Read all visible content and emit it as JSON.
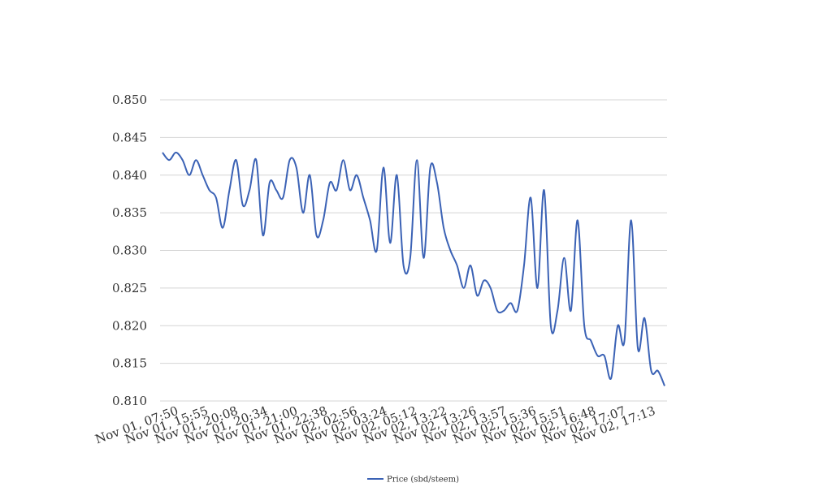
{
  "chart_data": {
    "type": "line",
    "title": "",
    "xlabel": "",
    "ylabel": "",
    "ylim": [
      0.81,
      0.85
    ],
    "yticks": [
      "0.850",
      "0.845",
      "0.840",
      "0.835",
      "0.830",
      "0.825",
      "0.820",
      "0.815",
      "0.810"
    ],
    "grid": true,
    "legend_position": "bottom",
    "category_labels": [
      "Nov 01, 07:50",
      "Nov 01, 15:55",
      "Nov 01, 20:08",
      "Nov 01, 20:34",
      "Nov 01, 21:00",
      "Nov 01, 22:38",
      "Nov 02, 02:56",
      "Nov 02, 03:24",
      "Nov 02, 05:12",
      "Nov 02, 13:22",
      "Nov 02, 13:26",
      "Nov 02, 13:57",
      "Nov 02, 15:36",
      "Nov 02, 15:51",
      "Nov 02, 16:48",
      "Nov 02, 17:07",
      "Nov 02, 17:13"
    ],
    "series": [
      {
        "name": "Price (sbd/steem)",
        "color": "#3b62b5",
        "values": [
          0.843,
          0.842,
          0.843,
          0.842,
          0.84,
          0.842,
          0.84,
          0.838,
          0.837,
          0.833,
          0.838,
          0.842,
          0.836,
          0.838,
          0.842,
          0.832,
          0.839,
          0.838,
          0.837,
          0.842,
          0.841,
          0.835,
          0.84,
          0.832,
          0.834,
          0.839,
          0.838,
          0.842,
          0.838,
          0.84,
          0.837,
          0.834,
          0.83,
          0.841,
          0.831,
          0.84,
          0.828,
          0.829,
          0.842,
          0.829,
          0.841,
          0.839,
          0.833,
          0.83,
          0.828,
          0.825,
          0.828,
          0.824,
          0.826,
          0.825,
          0.822,
          0.822,
          0.823,
          0.822,
          0.828,
          0.837,
          0.825,
          0.838,
          0.82,
          0.822,
          0.829,
          0.822,
          0.834,
          0.82,
          0.818,
          0.816,
          0.816,
          0.813,
          0.82,
          0.818,
          0.834,
          0.817,
          0.821,
          0.814,
          0.814,
          0.812
        ]
      }
    ]
  }
}
